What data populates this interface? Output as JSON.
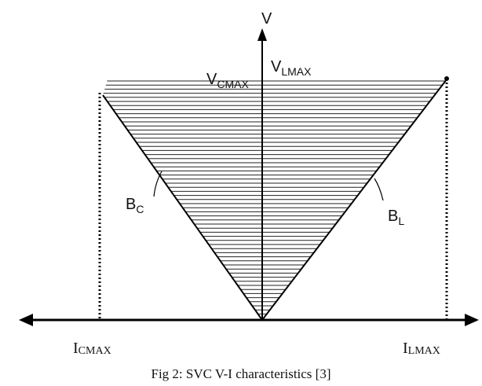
{
  "axes": {
    "v_axis": "V",
    "vlmax": {
      "main": "V",
      "sub": "LMAX"
    },
    "vcmax": {
      "main": "V",
      "sub": "CMAX"
    },
    "icmax": {
      "main": "I",
      "sub": "CMAX"
    },
    "ilmax": {
      "main": "I",
      "sub": "LMAX"
    }
  },
  "curves": {
    "bc": {
      "main": "B",
      "sub": "C"
    },
    "bl": {
      "main": "B",
      "sub": "L"
    }
  },
  "caption": "Fig 2: SVC V-I characteristics [3]"
}
